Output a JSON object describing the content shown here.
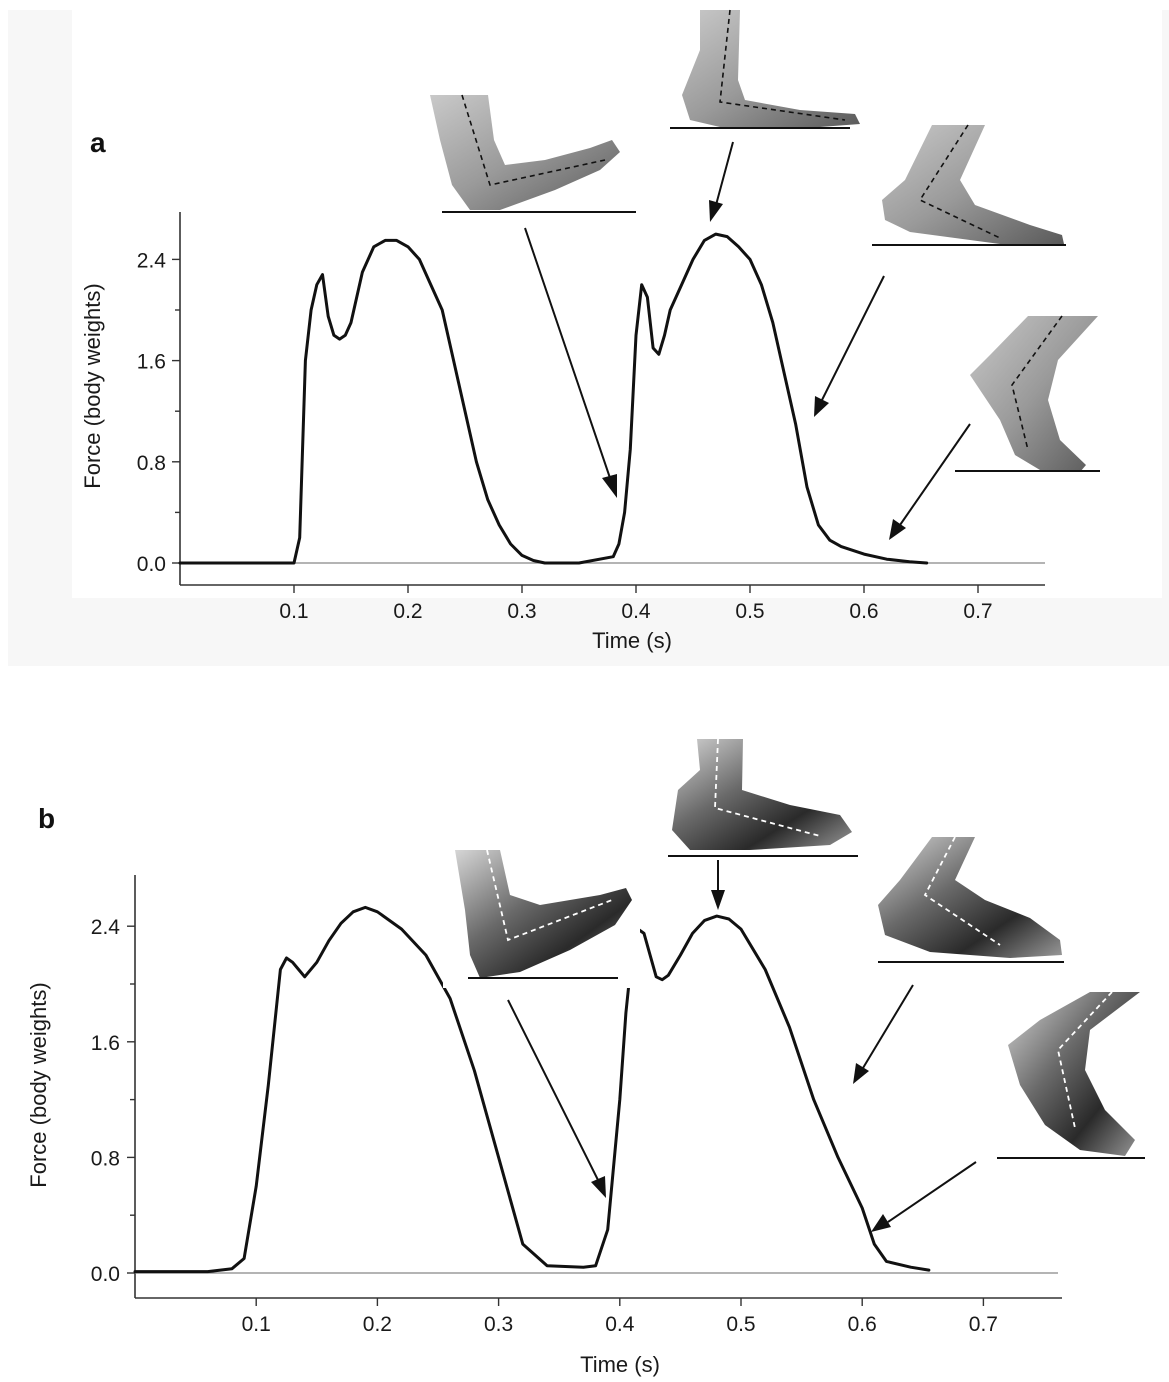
{
  "chart_data": [
    {
      "type": "line",
      "panel_label": "a",
      "xlabel": "Time (s)",
      "ylabel": "Force (body weights)",
      "x_ticks": [
        "0.1",
        "0.2",
        "0.3",
        "0.4",
        "0.5",
        "0.6",
        "0.7"
      ],
      "y_ticks": [
        "0.0",
        "0.8",
        "1.6",
        "2.4"
      ],
      "xlim": [
        0.0,
        0.76
      ],
      "ylim": [
        0.0,
        2.75
      ],
      "series": [
        {
          "x": [
            0.0,
            0.05,
            0.1,
            0.105,
            0.11,
            0.115,
            0.12,
            0.125,
            0.13,
            0.135,
            0.14,
            0.145,
            0.15,
            0.16,
            0.17,
            0.18,
            0.19,
            0.2,
            0.21,
            0.22,
            0.23,
            0.24,
            0.25,
            0.26,
            0.27,
            0.28,
            0.29,
            0.3,
            0.31,
            0.32,
            0.35,
            0.38,
            0.385,
            0.39,
            0.395,
            0.4,
            0.405,
            0.41,
            0.415,
            0.42,
            0.425,
            0.43,
            0.44,
            0.45,
            0.46,
            0.47,
            0.48,
            0.49,
            0.5,
            0.51,
            0.52,
            0.53,
            0.54,
            0.55,
            0.56,
            0.57,
            0.58,
            0.6,
            0.62,
            0.64,
            0.655
          ],
          "y": [
            0.0,
            0.0,
            0.0,
            0.2,
            1.6,
            2.0,
            2.2,
            2.28,
            1.95,
            1.8,
            1.77,
            1.8,
            1.9,
            2.3,
            2.5,
            2.55,
            2.55,
            2.5,
            2.4,
            2.2,
            2.0,
            1.6,
            1.2,
            0.8,
            0.5,
            0.3,
            0.15,
            0.06,
            0.02,
            0.0,
            0.0,
            0.05,
            0.15,
            0.4,
            0.9,
            1.8,
            2.2,
            2.1,
            1.7,
            1.65,
            1.8,
            2.0,
            2.2,
            2.4,
            2.55,
            2.6,
            2.58,
            2.5,
            2.4,
            2.2,
            1.9,
            1.5,
            1.1,
            0.6,
            0.3,
            0.18,
            0.13,
            0.07,
            0.03,
            0.01,
            0.0
          ]
        }
      ]
    },
    {
      "type": "line",
      "panel_label": "b",
      "xlabel": "Time (s)",
      "ylabel": "Force (body weights)",
      "x_ticks": [
        "0.1",
        "0.2",
        "0.3",
        "0.4",
        "0.5",
        "0.6",
        "0.7"
      ],
      "y_ticks": [
        "0.0",
        "0.8",
        "1.6",
        "2.4"
      ],
      "xlim": [
        0.0,
        0.76
      ],
      "ylim": [
        -0.2,
        2.75
      ],
      "series": [
        {
          "x": [
            0.0,
            0.06,
            0.08,
            0.09,
            0.1,
            0.11,
            0.12,
            0.125,
            0.13,
            0.135,
            0.14,
            0.15,
            0.16,
            0.17,
            0.18,
            0.19,
            0.2,
            0.22,
            0.24,
            0.26,
            0.28,
            0.3,
            0.31,
            0.32,
            0.34,
            0.37,
            0.38,
            0.39,
            0.4,
            0.405,
            0.41,
            0.415,
            0.42,
            0.425,
            0.43,
            0.435,
            0.44,
            0.45,
            0.46,
            0.47,
            0.48,
            0.49,
            0.5,
            0.52,
            0.54,
            0.56,
            0.58,
            0.6,
            0.61,
            0.62,
            0.64,
            0.655
          ],
          "y": [
            0.01,
            0.01,
            0.03,
            0.1,
            0.6,
            1.3,
            2.1,
            2.18,
            2.15,
            2.1,
            2.05,
            2.15,
            2.3,
            2.42,
            2.5,
            2.53,
            2.5,
            2.38,
            2.2,
            1.9,
            1.4,
            0.8,
            0.5,
            0.2,
            0.05,
            0.04,
            0.05,
            0.3,
            1.2,
            1.8,
            2.2,
            2.38,
            2.35,
            2.2,
            2.05,
            2.03,
            2.06,
            2.2,
            2.35,
            2.44,
            2.47,
            2.45,
            2.38,
            2.1,
            1.7,
            1.2,
            0.8,
            0.45,
            0.2,
            0.08,
            0.04,
            0.02
          ]
        }
      ]
    }
  ]
}
